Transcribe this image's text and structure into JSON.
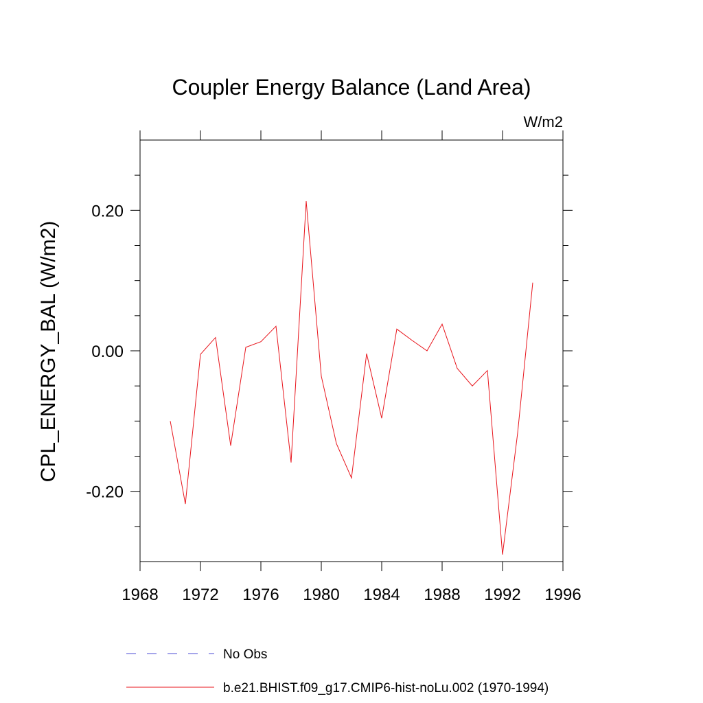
{
  "chart_data": {
    "type": "line",
    "title": "Coupler Energy Balance (Land Area)",
    "units_label": "W/m2",
    "ylabel": "CPL_ENERGY_BAL  (W/m2)",
    "xlabel": "",
    "xlim": [
      1968,
      1996
    ],
    "ylim": [
      -0.3,
      0.3
    ],
    "x_ticks": [
      1968,
      1972,
      1976,
      1980,
      1984,
      1988,
      1992,
      1996
    ],
    "x_tick_labels": [
      "1968",
      "1972",
      "1976",
      "1980",
      "1984",
      "1988",
      "1992",
      "1996"
    ],
    "y_ticks": [
      -0.2,
      0.0,
      0.2
    ],
    "y_tick_labels": [
      "-0.20",
      "0.00",
      "0.20"
    ],
    "y_minor_ticks": [
      -0.25,
      -0.15,
      -0.1,
      -0.05,
      0.05,
      0.1,
      0.15,
      0.25
    ],
    "grid": false,
    "legend_position": "bottom",
    "series": [
      {
        "name": "b.e21.BHIST.f09_g17.CMIP6-hist-noLu.002 (1970-1994)",
        "color": "#e8141b",
        "style": "solid",
        "x": [
          1970,
          1971,
          1972,
          1973,
          1974,
          1975,
          1976,
          1977,
          1978,
          1979,
          1980,
          1981,
          1982,
          1983,
          1984,
          1985,
          1986,
          1987,
          1988,
          1989,
          1990,
          1991,
          1992,
          1993,
          1994
        ],
        "y": [
          -0.1,
          -0.218,
          -0.005,
          0.019,
          -0.135,
          0.005,
          0.013,
          0.035,
          -0.159,
          0.213,
          -0.036,
          -0.132,
          -0.181,
          -0.004,
          -0.096,
          0.031,
          0.015,
          0.0,
          0.038,
          -0.025,
          -0.05,
          -0.028,
          -0.29,
          -0.117,
          0.097
        ]
      }
    ],
    "legend": [
      {
        "label": "No Obs",
        "color": "#4b4bd6",
        "style": "dashed"
      },
      {
        "label": "b.e21.BHIST.f09_g17.CMIP6-hist-noLu.002 (1970-1994)",
        "color": "#e8141b",
        "style": "solid"
      }
    ]
  }
}
